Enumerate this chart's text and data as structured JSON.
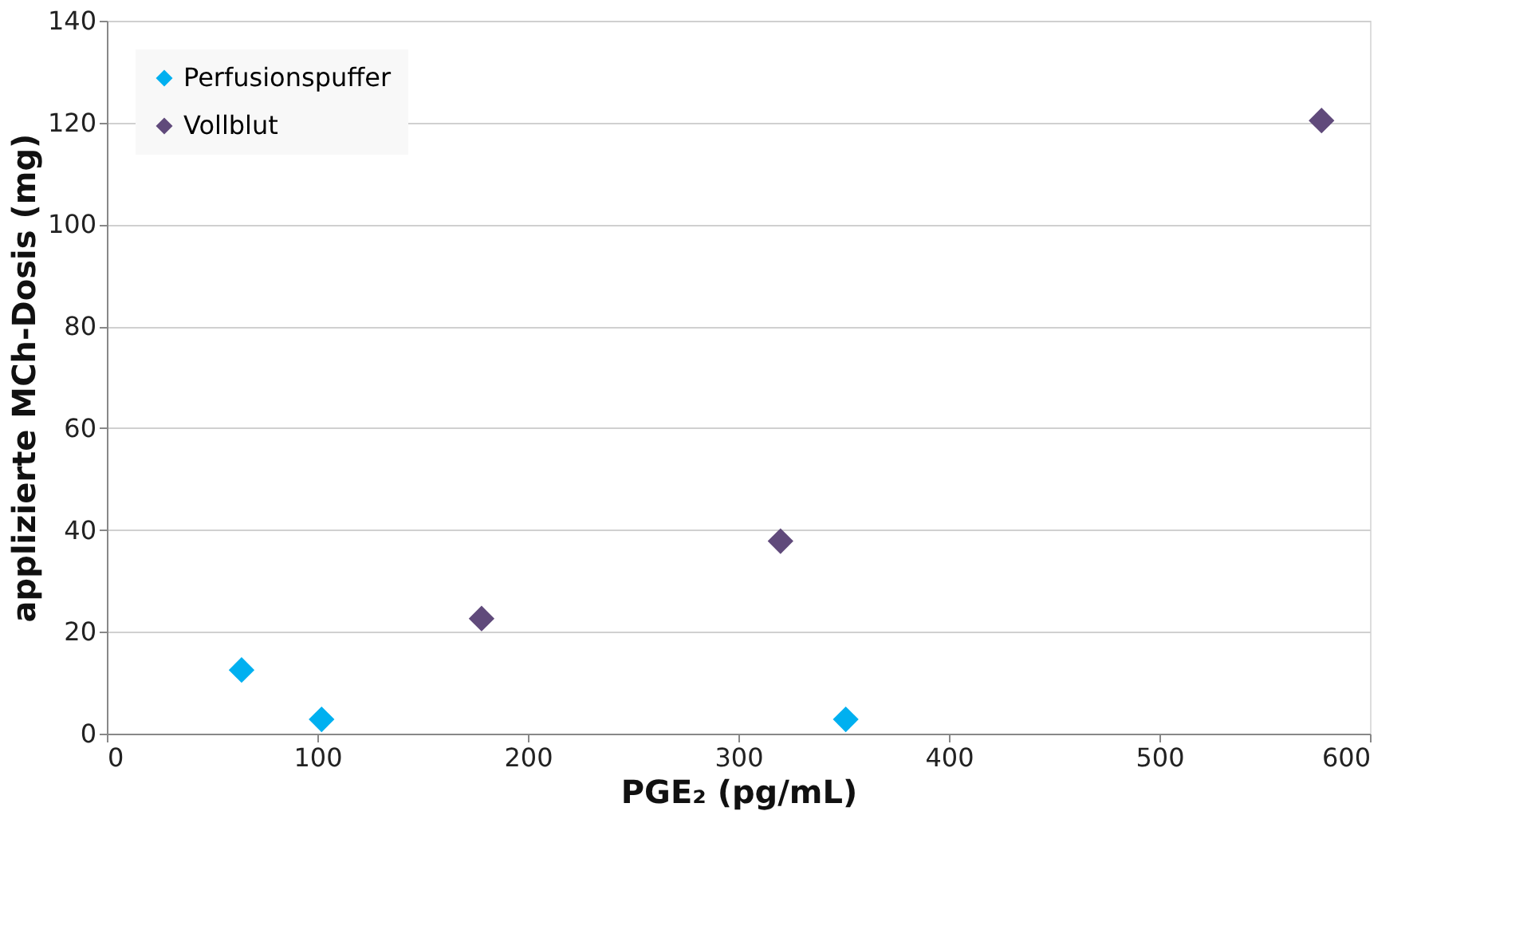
{
  "chart_data": {
    "type": "scatter",
    "xlabel": "PGE₂ (pg/mL)",
    "ylabel": "applizierte MCh-Dosis (mg)",
    "series": [
      {
        "name": "Perfusionspuffer",
        "color": "#00b0f0",
        "x": [
          64,
          102,
          351
        ],
        "values": [
          12.5,
          2.8,
          2.8
        ]
      },
      {
        "name": "Vollblut",
        "color": "#604a7b",
        "x": [
          178,
          320,
          577
        ],
        "values": [
          22.6,
          37.8,
          120.4
        ]
      }
    ],
    "xlim": [
      0,
      600
    ],
    "xticks": [
      0,
      100,
      200,
      300,
      400,
      500,
      600
    ],
    "ylim": [
      0,
      140
    ],
    "yticks": [
      0,
      20,
      40,
      60,
      80,
      100,
      120,
      140
    ],
    "grid": "y",
    "legend": "top left",
    "marker": "diamond"
  }
}
